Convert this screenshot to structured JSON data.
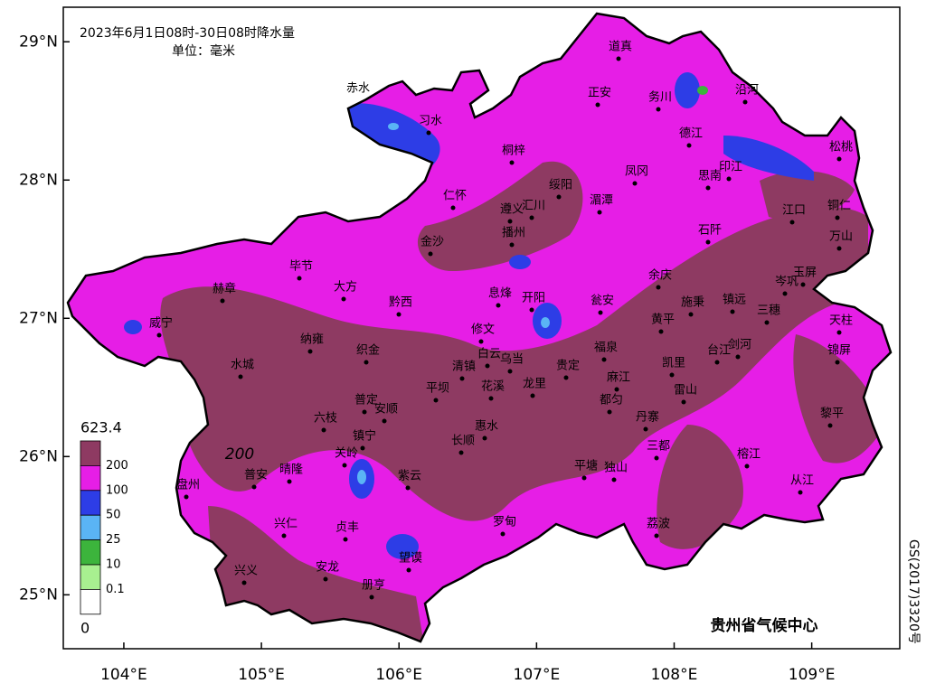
{
  "map": {
    "title": "2023年6月1日08时-30日08时降水量",
    "unit": "单位：毫米",
    "lon_range": [
      103.56,
      109.64
    ],
    "lat_range": [
      24.61,
      29.25
    ],
    "lat_ticks": [
      {
        "value": 29,
        "label": "29°N"
      },
      {
        "value": 28,
        "label": "28°N"
      },
      {
        "value": 27,
        "label": "27°N"
      },
      {
        "value": 26,
        "label": "26°N"
      },
      {
        "value": 25,
        "label": "25°N"
      }
    ],
    "lon_ticks": [
      {
        "value": 104,
        "label": "104°E"
      },
      {
        "value": 105,
        "label": "105°E"
      },
      {
        "value": 106,
        "label": "106°E"
      },
      {
        "value": 107,
        "label": "107°E"
      },
      {
        "value": 108,
        "label": "108°E"
      },
      {
        "value": 109,
        "label": "109°E"
      }
    ],
    "legend": {
      "bounds": [
        623.4,
        200,
        100,
        50,
        25,
        10,
        0.1,
        0
      ],
      "colors": [
        "#8e3a62",
        "#e61ee6",
        "#2d3de6",
        "#5ab4f5",
        "#3cb43c",
        "#a8f090",
        "#ffffff"
      ]
    },
    "contour_label": "200",
    "cities": [
      "赤水",
      "习水",
      "道真",
      "正安",
      "务川",
      "沿河",
      "德江",
      "桐梓",
      "思南",
      "印江",
      "松桃",
      "凤冈",
      "绥阳",
      "湄潭",
      "仁怀",
      "遵义",
      "汇川",
      "播州",
      "江口",
      "铜仁",
      "石阡",
      "万山",
      "金沙",
      "毕节",
      "余庆",
      "岑巩",
      "玉屏",
      "赫章",
      "大方",
      "息烽",
      "开阳",
      "瓮安",
      "施秉",
      "镇远",
      "三穗",
      "黔西",
      "威宁",
      "黄平",
      "天柱",
      "修文",
      "纳雍",
      "织金",
      "福泉",
      "台江",
      "剑河",
      "锦屏",
      "白云",
      "乌当",
      "清镇",
      "贵定",
      "水城",
      "凯里",
      "麻江",
      "雷山",
      "平坝",
      "花溪",
      "龙里",
      "都匀",
      "普定",
      "安顺",
      "六枝",
      "丹寨",
      "黎平",
      "惠水",
      "镇宁",
      "长顺",
      "关岭",
      "三都",
      "榕江",
      "从江",
      "普安",
      "晴隆",
      "紫云",
      "平塘",
      "独山",
      "盘州",
      "兴仁",
      "贞丰",
      "罗甸",
      "荔波",
      "望谟",
      "安龙",
      "兴义",
      "册亨"
    ],
    "credit": "贵州省气候中心",
    "approval": "GS(2017)3320号"
  }
}
